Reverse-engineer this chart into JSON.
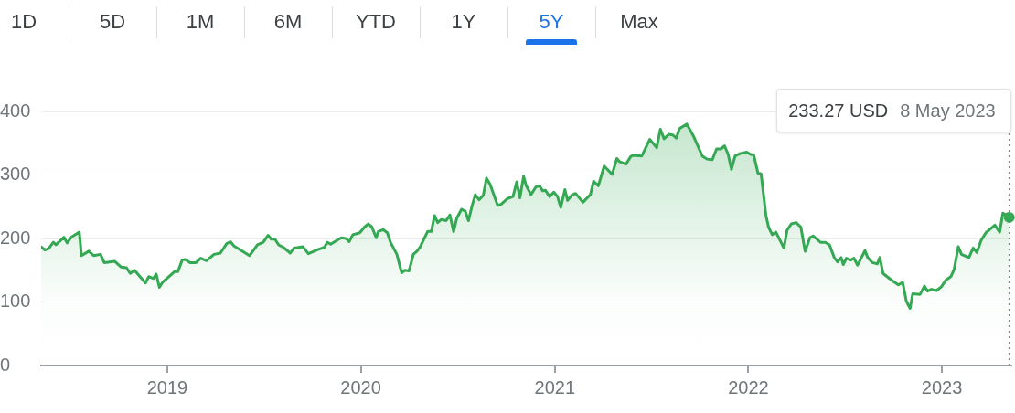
{
  "chart_data": {
    "type": "area",
    "color": "#34a853",
    "x": [
      "2018-05-08",
      "2018-05-15",
      "2018-05-22",
      "2018-05-31",
      "2018-06-05",
      "2018-06-20",
      "2018-06-26",
      "2018-07-04",
      "2018-07-19",
      "2018-07-23",
      "2018-08-06",
      "2018-08-15",
      "2018-08-28",
      "2018-09-04",
      "2018-09-24",
      "2018-10-06",
      "2018-10-16",
      "2018-10-23",
      "2018-10-31",
      "2018-11-21",
      "2018-11-27",
      "2018-12-06",
      "2018-12-11",
      "2018-12-17",
      "2018-12-23",
      "2019-01-15",
      "2019-01-21",
      "2019-01-29",
      "2019-02-04",
      "2019-02-13",
      "2019-02-24",
      "2019-03-05",
      "2019-03-16",
      "2019-03-30",
      "2019-04-11",
      "2019-04-23",
      "2019-04-30",
      "2019-05-07",
      "2019-06-05",
      "2019-06-20",
      "2019-07-01",
      "2019-07-10",
      "2019-07-16",
      "2019-07-23",
      "2019-07-30",
      "2019-08-08",
      "2019-08-21",
      "2019-08-28",
      "2019-09-14",
      "2019-09-24",
      "2019-10-13",
      "2019-10-24",
      "2019-10-30",
      "2019-11-05",
      "2019-11-25",
      "2019-12-04",
      "2019-12-10",
      "2019-12-17",
      "2019-12-30",
      "2020-01-08",
      "2020-01-15",
      "2020-01-22",
      "2020-01-30",
      "2020-02-03",
      "2020-02-12",
      "2020-02-20",
      "2020-02-26",
      "2020-03-09",
      "2020-03-18",
      "2020-03-24",
      "2020-04-01",
      "2020-04-09",
      "2020-04-16",
      "2020-04-22",
      "2020-05-06",
      "2020-05-13",
      "2020-05-19",
      "2020-05-25",
      "2020-06-01",
      "2020-06-10",
      "2020-06-17",
      "2020-06-24",
      "2020-06-30",
      "2020-07-09",
      "2020-07-16",
      "2020-07-22",
      "2020-07-29",
      "2020-08-04",
      "2020-08-11",
      "2020-08-19",
      "2020-08-25",
      "2020-09-01",
      "2020-09-15",
      "2020-09-22",
      "2020-10-04",
      "2020-10-14",
      "2020-10-21",
      "2020-10-27",
      "2020-11-03",
      "2020-11-08",
      "2020-11-17",
      "2020-11-26",
      "2020-12-03",
      "2020-12-09",
      "2020-12-14",
      "2020-12-22",
      "2020-12-30",
      "2021-01-06",
      "2021-01-12",
      "2021-01-20",
      "2021-01-25",
      "2021-02-03",
      "2021-02-09",
      "2021-02-23",
      "2021-03-09",
      "2021-03-15",
      "2021-03-24",
      "2021-04-04",
      "2021-04-19",
      "2021-04-28",
      "2021-05-03",
      "2021-05-15",
      "2021-05-24",
      "2021-05-29",
      "2021-06-14",
      "2021-06-29",
      "2021-07-12",
      "2021-07-19",
      "2021-07-26",
      "2021-08-04",
      "2021-08-11",
      "2021-08-18",
      "2021-08-24",
      "2021-09-07",
      "2021-09-19",
      "2021-10-06",
      "2021-10-15",
      "2021-10-25",
      "2021-11-02",
      "2021-11-10",
      "2021-11-17",
      "2021-11-24",
      "2021-11-30",
      "2021-12-07",
      "2021-12-17",
      "2021-12-29",
      "2022-01-06",
      "2022-01-11",
      "2022-01-19",
      "2022-01-25",
      "2022-02-03",
      "2022-02-08",
      "2022-02-15",
      "2022-02-22",
      "2022-03-09",
      "2022-03-15",
      "2022-03-23",
      "2022-04-01",
      "2022-04-10",
      "2022-04-18",
      "2022-04-27",
      "2022-05-03",
      "2022-05-17",
      "2022-05-26",
      "2022-06-03",
      "2022-06-12",
      "2022-06-18",
      "2022-06-25",
      "2022-06-29",
      "2022-07-05",
      "2022-07-13",
      "2022-07-19",
      "2022-07-26",
      "2022-08-09",
      "2022-08-14",
      "2022-08-23",
      "2022-09-01",
      "2022-09-06",
      "2022-09-12",
      "2022-09-24",
      "2022-10-02",
      "2022-10-11",
      "2022-10-19",
      "2022-10-26",
      "2022-11-02",
      "2022-11-07",
      "2022-11-21",
      "2022-11-29",
      "2022-12-05",
      "2022-12-12",
      "2022-12-22",
      "2022-12-31",
      "2023-01-09",
      "2023-01-18",
      "2023-01-24",
      "2023-02-01",
      "2023-02-07",
      "2023-02-21",
      "2023-03-01",
      "2023-03-08",
      "2023-03-16",
      "2023-03-25",
      "2023-04-11",
      "2023-04-20",
      "2023-04-26",
      "2023-05-02",
      "2023-05-08"
    ],
    "values": [
      187,
      182,
      184,
      194,
      190,
      202,
      193,
      202,
      210,
      173,
      180,
      173,
      175,
      162,
      164,
      155,
      154,
      145,
      150,
      130,
      140,
      137,
      144,
      123,
      131,
      148,
      148,
      166,
      167,
      162,
      162,
      169,
      165,
      175,
      177,
      192,
      195,
      188,
      173,
      190,
      194,
      205,
      199,
      199,
      190,
      186,
      177,
      185,
      187,
      176,
      183,
      186,
      194,
      191,
      201,
      200,
      195,
      206,
      209,
      218,
      223,
      218,
      201,
      211,
      214,
      209,
      194,
      175,
      146,
      150,
      149,
      175,
      180,
      187,
      211,
      211,
      236,
      225,
      230,
      228,
      237,
      211,
      232,
      246,
      243,
      228,
      252,
      269,
      261,
      268,
      295,
      285,
      252,
      254,
      263,
      266,
      289,
      264,
      298,
      283,
      269,
      281,
      283,
      275,
      276,
      266,
      273,
      266,
      249,
      277,
      260,
      269,
      271,
      257,
      269,
      290,
      283,
      314,
      301,
      326,
      321,
      317,
      329,
      331,
      330,
      356,
      343,
      372,
      357,
      364,
      363,
      358,
      373,
      380,
      362,
      330,
      325,
      324,
      341,
      341,
      346,
      332,
      309,
      330,
      334,
      336,
      332,
      332,
      303,
      302,
      237,
      218,
      206,
      210,
      185,
      213,
      223,
      225,
      218,
      180,
      201,
      204,
      194,
      194,
      190,
      170,
      163,
      170,
      159,
      169,
      166,
      169,
      158,
      181,
      170,
      162,
      160,
      170,
      145,
      137,
      132,
      127,
      131,
      101,
      90,
      113,
      112,
      125,
      117,
      120,
      118,
      124,
      135,
      140,
      151,
      187,
      175,
      170,
      185,
      178,
      197,
      209,
      221,
      210,
      240,
      237,
      233.27
    ],
    "xlim": [
      "2018-05-08",
      "2023-05-12"
    ],
    "xticks": [
      "2019",
      "2020",
      "2021",
      "2022",
      "2023"
    ],
    "ylim": [
      0,
      400
    ],
    "yticks": [
      0,
      100,
      200,
      300,
      400
    ],
    "grid": "y",
    "ref_lines": [
      {
        "axis": "x",
        "value": "2023-05-08",
        "color": "#80868b",
        "line_style": "dotted"
      }
    ],
    "annotations": [
      "1D",
      "5D",
      "1M",
      "6M",
      "YTD",
      "1Y",
      "5Y",
      "Max",
      "233.27 USD",
      "8 May 2023"
    ]
  }
}
